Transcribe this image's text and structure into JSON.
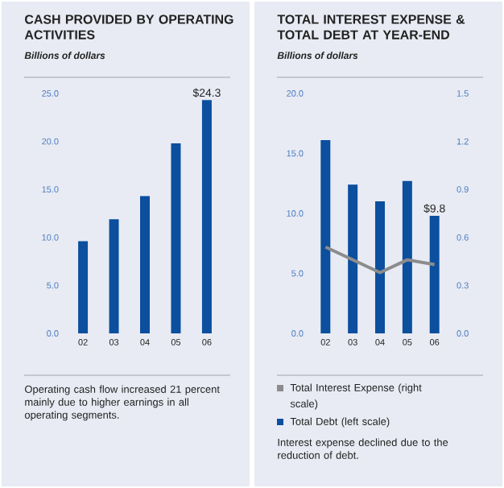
{
  "chart_data": [
    {
      "type": "bar",
      "title": "CASH PROVIDED BY OPERATING ACTIVITIES",
      "subtitle": "Billions of dollars",
      "categories": [
        "02",
        "03",
        "04",
        "05",
        "06"
      ],
      "values": [
        9.6,
        11.9,
        14.3,
        19.8,
        24.3
      ],
      "color": "#0b4f9e",
      "value_labels": [
        null,
        null,
        null,
        null,
        "$24.3"
      ],
      "ylim": [
        0,
        25
      ],
      "yticks": [
        {
          "value": 0,
          "label": "0.0"
        },
        {
          "value": 5,
          "label": "5.0"
        },
        {
          "value": 10,
          "label": "10.0"
        },
        {
          "value": 15,
          "label": "15.0"
        },
        {
          "value": 20,
          "label": "20.0"
        },
        {
          "value": 25,
          "label": "25.0"
        }
      ],
      "annotations": [
        "Operating cash flow increased 21 percent mainly due to higher earnings in all operating segments."
      ]
    },
    {
      "type": "bar",
      "title": "TOTAL INTEREST EXPENSE & TOTAL DEBT AT YEAR-END",
      "subtitle": "Billions of dollars",
      "categories": [
        "02",
        "03",
        "04",
        "05",
        "06"
      ],
      "series": [
        {
          "name": "Total Interest Expense (right scale)",
          "type": "line",
          "axis": "y2",
          "color": "#8c8c8c",
          "values": [
            0.54,
            0.46,
            0.38,
            0.46,
            0.43
          ]
        },
        {
          "name": "Total Debt (left scale)",
          "type": "bar",
          "color": "#0b4f9e",
          "values": [
            16.1,
            12.4,
            11.0,
            12.7,
            9.8
          ],
          "value_labels": [
            null,
            null,
            null,
            null,
            "$9.8"
          ]
        }
      ],
      "ylim": [
        0,
        20
      ],
      "yticks": [
        {
          "value": 0,
          "label": "0.0"
        },
        {
          "value": 5,
          "label": "5.0"
        },
        {
          "value": 10,
          "label": "10.0"
        },
        {
          "value": 15,
          "label": "15.0"
        },
        {
          "value": 20,
          "label": "20.0"
        }
      ],
      "y2lim": [
        0,
        1.5
      ],
      "y2ticks": [
        {
          "value": 0,
          "label": "0.0"
        },
        {
          "value": 0.3,
          "label": "0.3"
        },
        {
          "value": 0.6,
          "label": "0.6"
        },
        {
          "value": 0.9,
          "label": "0.9"
        },
        {
          "value": 1.2,
          "label": "1.2"
        },
        {
          "value": 1.5,
          "label": "1.5"
        }
      ],
      "legend": "bottom",
      "annotations": [
        "Interest expense declined due to the reduction of debt."
      ]
    }
  ]
}
